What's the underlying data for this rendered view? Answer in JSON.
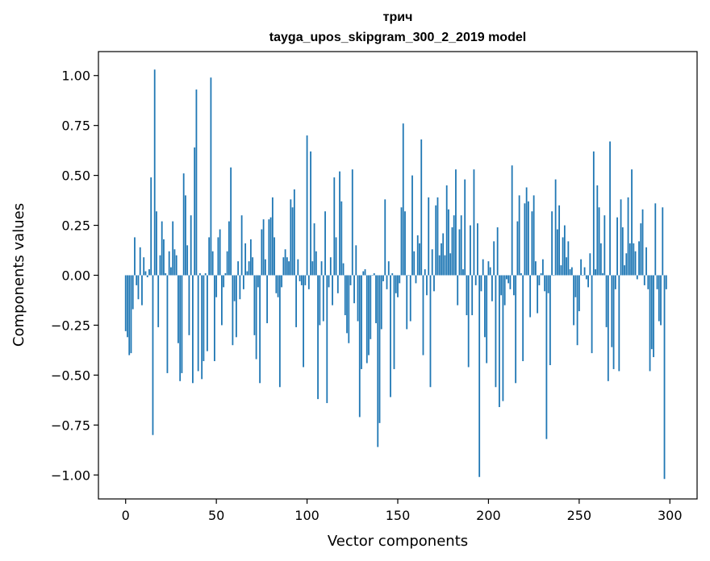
{
  "chart_data": {
    "type": "bar",
    "title": "трич",
    "subtitle": "tayga_upos_skipgram_300_2_2019 model",
    "xlabel": "Vector components",
    "ylabel": "Components values",
    "xlim": [
      -15,
      315
    ],
    "ylim": [
      -1.12,
      1.12
    ],
    "xticks": [
      0,
      50,
      100,
      150,
      200,
      250,
      300
    ],
    "yticks": [
      -1.0,
      -0.75,
      -0.5,
      -0.25,
      0.0,
      0.25,
      0.5,
      0.75,
      1.0
    ],
    "yticklabels": [
      "−1.00",
      "−0.75",
      "−0.50",
      "−0.25",
      "0.00",
      "0.25",
      "0.50",
      "0.75",
      "1.00"
    ],
    "grid": false,
    "bar_color": "#1f77b4",
    "values": [
      -0.28,
      -0.31,
      -0.4,
      -0.39,
      -0.17,
      0.19,
      -0.05,
      -0.12,
      0.14,
      -0.15,
      0.09,
      0.02,
      -0.01,
      0.03,
      0.49,
      -0.8,
      1.03,
      0.32,
      -0.26,
      0.1,
      0.27,
      0.18,
      0.01,
      -0.49,
      0.12,
      0.04,
      0.27,
      0.13,
      0.1,
      -0.34,
      -0.53,
      -0.49,
      0.51,
      0.4,
      0.15,
      -0.3,
      0.3,
      -0.54,
      0.64,
      0.93,
      -0.48,
      0.01,
      -0.52,
      -0.43,
      0.01,
      -0.38,
      0.19,
      0.99,
      0.12,
      -0.43,
      -0.11,
      0.19,
      0.23,
      -0.25,
      -0.06,
      0.01,
      0.12,
      0.27,
      0.54,
      -0.35,
      -0.13,
      -0.31,
      0.07,
      -0.12,
      0.3,
      -0.07,
      0.16,
      0.02,
      0.07,
      0.18,
      0.09,
      -0.3,
      -0.42,
      -0.06,
      -0.54,
      0.23,
      0.28,
      0.08,
      -0.24,
      0.28,
      0.29,
      0.39,
      0.19,
      -0.09,
      -0.11,
      -0.56,
      -0.06,
      0.09,
      0.13,
      0.09,
      0.07,
      0.38,
      0.34,
      0.43,
      -0.26,
      0.08,
      -0.03,
      -0.05,
      -0.46,
      -0.05,
      0.7,
      -0.07,
      0.62,
      0.07,
      0.26,
      0.12,
      -0.62,
      -0.25,
      0.07,
      -0.23,
      0.32,
      -0.64,
      -0.06,
      0.09,
      -0.15,
      0.49,
      0.19,
      -0.09,
      0.52,
      0.37,
      0.06,
      -0.2,
      -0.29,
      -0.34,
      -0.05,
      0.53,
      -0.14,
      0.15,
      -0.23,
      -0.71,
      -0.47,
      0.02,
      0.03,
      -0.44,
      -0.4,
      -0.32,
      0.0,
      0.01,
      -0.24,
      -0.86,
      -0.74,
      -0.27,
      -0.03,
      0.38,
      -0.07,
      0.07,
      -0.61,
      0.01,
      -0.47,
      -0.09,
      -0.11,
      -0.04,
      0.34,
      0.76,
      0.32,
      -0.27,
      0.0,
      -0.23,
      0.5,
      0.12,
      -0.04,
      0.2,
      0.16,
      0.68,
      -0.4,
      0.03,
      -0.1,
      0.39,
      -0.56,
      0.13,
      -0.08,
      0.35,
      0.39,
      0.1,
      0.16,
      0.21,
      0.1,
      0.45,
      0.33,
      0.11,
      0.24,
      0.3,
      0.53,
      -0.15,
      0.23,
      0.3,
      0.03,
      0.48,
      -0.2,
      -0.46,
      0.25,
      -0.2,
      0.53,
      -0.05,
      0.26,
      -1.01,
      -0.08,
      0.08,
      -0.31,
      -0.44,
      0.07,
      0.04,
      -0.13,
      0.17,
      -0.56,
      0.24,
      -0.66,
      -0.1,
      -0.63,
      -0.15,
      -0.02,
      -0.04,
      -0.07,
      0.55,
      -0.1,
      -0.54,
      0.27,
      0.4,
      0.01,
      -0.43,
      0.36,
      0.44,
      0.37,
      -0.21,
      0.32,
      0.4,
      0.07,
      -0.19,
      -0.05,
      0.01,
      0.08,
      -0.08,
      -0.82,
      -0.09,
      -0.45,
      0.32,
      0.0,
      0.48,
      0.23,
      0.35,
      0.05,
      0.19,
      0.25,
      0.09,
      0.17,
      0.03,
      0.04,
      -0.25,
      -0.11,
      -0.35,
      -0.18,
      0.08,
      0.0,
      0.04,
      -0.02,
      -0.06,
      0.11,
      -0.39,
      0.62,
      0.03,
      0.45,
      0.34,
      0.16,
      0.01,
      0.3,
      -0.26,
      -0.53,
      0.67,
      -0.36,
      -0.47,
      -0.07,
      0.29,
      -0.48,
      0.38,
      0.24,
      0.05,
      0.11,
      0.39,
      0.16,
      0.53,
      0.16,
      0.12,
      -0.02,
      0.17,
      0.26,
      0.33,
      -0.05,
      0.14,
      -0.07,
      -0.48,
      -0.37,
      -0.41,
      0.36,
      -0.07,
      -0.23,
      -0.25,
      0.34,
      -1.02,
      -0.07
    ]
  }
}
